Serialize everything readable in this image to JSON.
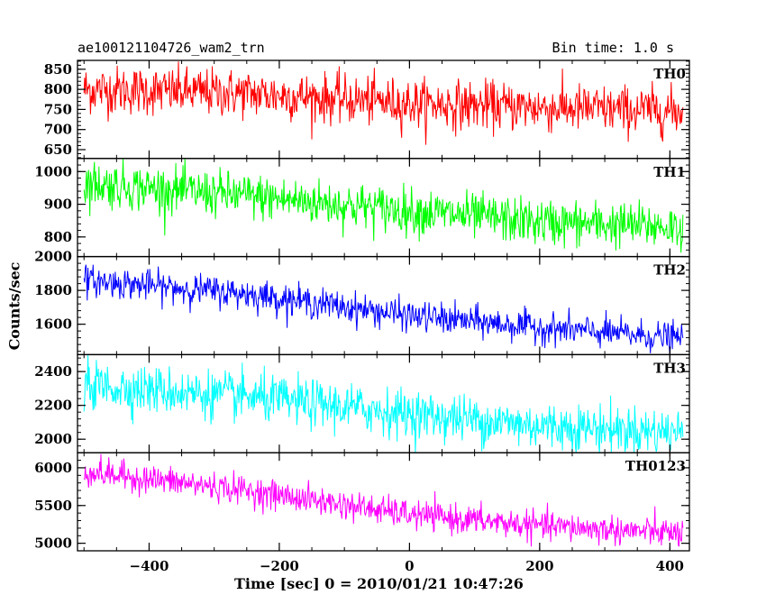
{
  "header": {
    "title_left": "ae100121104726_wam2_trn",
    "title_right": "Bin time: 1.0 s"
  },
  "chart_data": {
    "type": "line",
    "xlabel": "Time [sec] 0 = 2010/01/21 10:47:26",
    "ylabel": "Counts/sec",
    "xlim": [
      -510,
      430
    ],
    "x_ticks": [
      -400,
      -200,
      0,
      200,
      400
    ],
    "x_tick_labels": [
      "−400",
      "−200",
      "0",
      "200",
      "400"
    ],
    "bin_time_s": 1.0,
    "x_range_data": [
      -500,
      420
    ],
    "panels": [
      {
        "name": "TH0",
        "color": "#ff0000",
        "ylim": [
          628,
          872
        ],
        "y_ticks": [
          650,
          700,
          750,
          800,
          850
        ],
        "trend": [
          [
            -500,
            800
          ],
          [
            -250,
            790
          ],
          [
            0,
            765
          ],
          [
            200,
            755
          ],
          [
            420,
            745
          ]
        ],
        "noise_sd": 30
      },
      {
        "name": "TH1",
        "color": "#00ff00",
        "ylim": [
          740,
          1040
        ],
        "y_ticks": [
          800,
          900,
          1000
        ],
        "trend": [
          [
            -500,
            965
          ],
          [
            -250,
            925
          ],
          [
            0,
            880
          ],
          [
            200,
            845
          ],
          [
            420,
            830
          ]
        ],
        "noise_sd": 35
      },
      {
        "name": "TH2",
        "color": "#0000ff",
        "ylim": [
          1420,
          2000
        ],
        "y_ticks": [
          1600,
          1800,
          2000
        ],
        "trend": [
          [
            -500,
            1860
          ],
          [
            -250,
            1780
          ],
          [
            0,
            1650
          ],
          [
            200,
            1580
          ],
          [
            420,
            1515
          ]
        ],
        "noise_sd": 45
      },
      {
        "name": "TH3",
        "color": "#00ffff",
        "ylim": [
          1920,
          2500
        ],
        "y_ticks": [
          2000,
          2200,
          2400
        ],
        "trend": [
          [
            -500,
            2320
          ],
          [
            -250,
            2250
          ],
          [
            0,
            2150
          ],
          [
            200,
            2080
          ],
          [
            420,
            2040
          ]
        ],
        "noise_sd": 70
      },
      {
        "name": "TH0123",
        "color": "#ff00ff",
        "ylim": [
          4900,
          6200
        ],
        "y_ticks": [
          5000,
          5500,
          6000
        ],
        "trend": [
          [
            -500,
            5950
          ],
          [
            -250,
            5700
          ],
          [
            0,
            5380
          ],
          [
            200,
            5230
          ],
          [
            420,
            5130
          ]
        ],
        "noise_sd": 95
      }
    ]
  }
}
